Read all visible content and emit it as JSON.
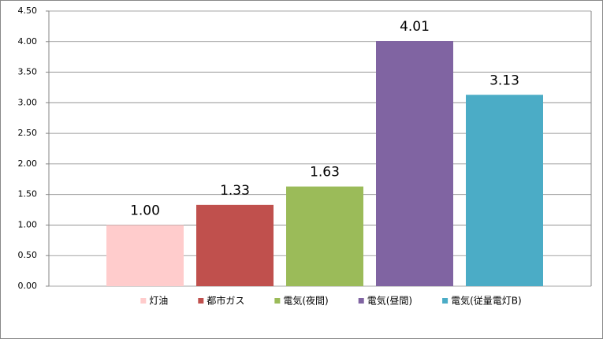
{
  "chart_data": {
    "type": "bar",
    "series": [
      {
        "name": "灯油",
        "color": "#ffcccc",
        "values": [
          1.0
        ],
        "value_labels": [
          "1.00"
        ]
      },
      {
        "name": "都市ガス",
        "color": "#c0504d",
        "values": [
          1.33
        ],
        "value_labels": [
          "1.33"
        ]
      },
      {
        "name": "電気(夜間)",
        "color": "#9bbb59",
        "values": [
          1.63
        ],
        "value_labels": [
          "1.63"
        ]
      },
      {
        "name": "電気(昼間)",
        "color": "#8064a2",
        "values": [
          4.01
        ],
        "value_labels": [
          "4.01"
        ]
      },
      {
        "name": "電気(従量電灯B)",
        "color": "#4bacc6",
        "values": [
          3.13
        ],
        "value_labels": [
          "3.13"
        ]
      }
    ],
    "ylim": [
      0,
      4.5
    ],
    "yticks": [
      {
        "value": 0,
        "label": "0.00"
      },
      {
        "value": 0.5,
        "label": "0.50"
      },
      {
        "value": 1,
        "label": "1.00"
      },
      {
        "value": 1.5,
        "label": "1.50"
      },
      {
        "value": 2,
        "label": "2.00"
      },
      {
        "value": 2.5,
        "label": "2.50"
      },
      {
        "value": 3,
        "label": "3.00"
      },
      {
        "value": 3.5,
        "label": "3.50"
      },
      {
        "value": 4,
        "label": "4.00"
      },
      {
        "value": 4.5,
        "label": "4.50"
      }
    ],
    "grid": true,
    "legend": "bottom"
  }
}
